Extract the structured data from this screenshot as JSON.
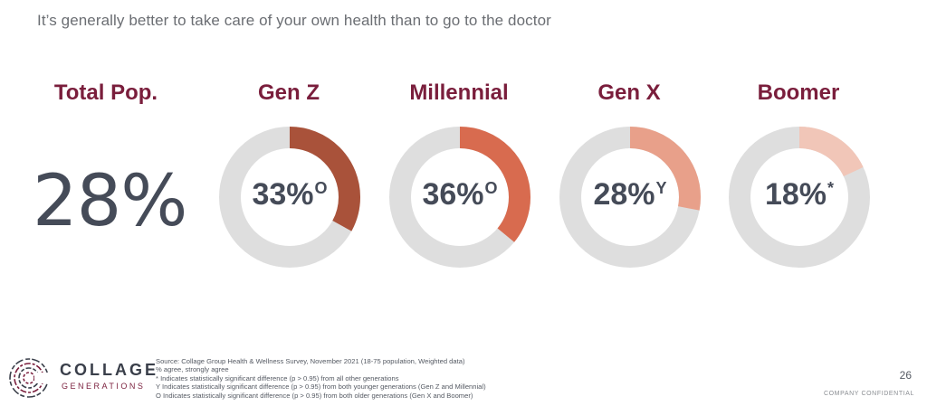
{
  "title": "It’s generally better to take care of your own health than to go to the doctor",
  "colors": {
    "label": "#7a1e3c",
    "track": "#dedede",
    "value_text": "#454b58"
  },
  "chart_data": {
    "type": "pie",
    "title": "It’s generally better to take care of your own health than to go to the doctor",
    "total": {
      "label": "Total Pop.",
      "value": 28,
      "display": "28%"
    },
    "series": [
      {
        "name": "Gen Z",
        "value": 33,
        "display": "33%",
        "mark": "O",
        "color": "#a9523a"
      },
      {
        "name": "Millennial",
        "value": 36,
        "display": "36%",
        "mark": "O",
        "color": "#d86b4f"
      },
      {
        "name": "Gen X",
        "value": 28,
        "display": "28%",
        "mark": "Y",
        "color": "#e8a08a"
      },
      {
        "name": "Boomer",
        "value": 18,
        "display": "18%",
        "mark": "*",
        "color": "#f1c6b8"
      }
    ]
  },
  "footer": {
    "logo_icon": "collage-logo-icon",
    "logo_name": "COLLAGE",
    "logo_sub": "GENERATIONS",
    "notes": [
      "Source: Collage Group Health & Wellness Survey, November 2021 (18-75 population, Weighted data)",
      "% agree, strongly agree",
      "* Indicates statistically significant difference (p > 0.95) from all other generations",
      "Y Indicates statistically significant difference (p > 0.95) from both younger generations (Gen Z and Millennial)",
      "O Indicates statistically significant difference (p > 0.95) from both older generations (Gen X and Boomer)"
    ],
    "page_number": "26",
    "confidential": "COMPANY CONFIDENTIAL"
  }
}
